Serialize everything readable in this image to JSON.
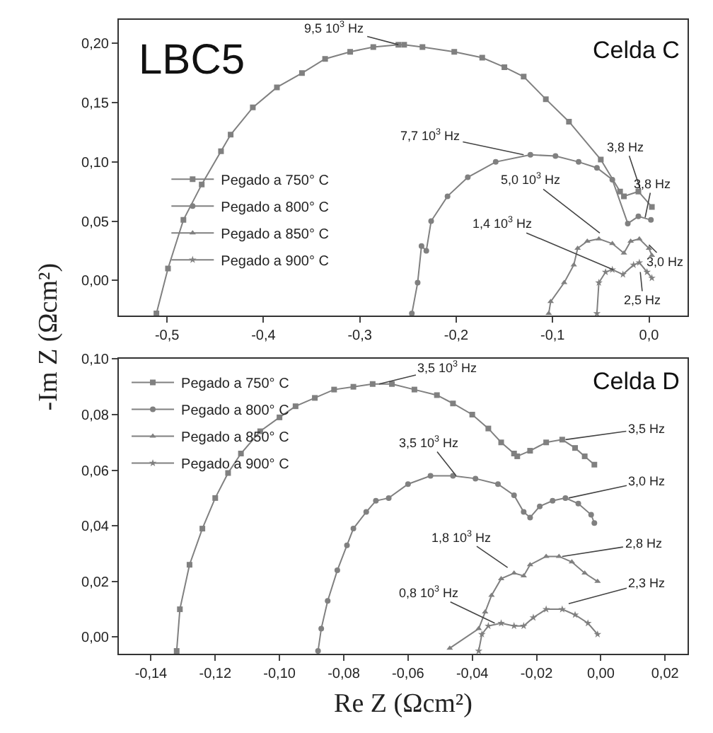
{
  "chart_data": [
    {
      "type": "line",
      "ylabel": "-Im Z (Ωcm²)",
      "annotations": [
        "LBC5",
        "Celda C",
        {
          "text": "9,5 10$^{3}$ Hz",
          "x": -0.26,
          "y": 0.199
        },
        {
          "text": "7,7 10$^{3}$ Hz",
          "x": -0.13,
          "y": 0.106
        },
        {
          "text": "3,8 Hz",
          "x": -0.009,
          "y": 0.077
        },
        {
          "text": "3,8 Hz",
          "x": -0.004,
          "y": 0.053
        },
        {
          "text": "5,0 10$^{3}$ Hz",
          "x": -0.051,
          "y": 0.04
        },
        {
          "text": "3,0 Hz",
          "x": 0.0,
          "y": 0.03
        },
        {
          "text": "1,4 10$^{3}$ Hz",
          "x": -0.037,
          "y": 0.009
        },
        {
          "text": "2,5 Hz",
          "x": -0.009,
          "y": 0.007
        }
      ],
      "xlim": [
        -0.55,
        0.04
      ],
      "ylim": [
        -0.03,
        0.22
      ],
      "xticks": [
        {
          "value": -0.5,
          "label": "-0,5"
        },
        {
          "value": -0.4,
          "label": "-0,4"
        },
        {
          "value": -0.3,
          "label": "-0,3"
        },
        {
          "value": -0.2,
          "label": "-0,2"
        },
        {
          "value": -0.1,
          "label": "-0,1"
        },
        {
          "value": 0.0,
          "label": "0,0"
        }
      ],
      "yticks": [
        {
          "value": 0.0,
          "label": "0,00"
        },
        {
          "value": 0.05,
          "label": "0,05"
        },
        {
          "value": 0.1,
          "label": "0,10"
        },
        {
          "value": 0.15,
          "label": "0,15"
        },
        {
          "value": 0.2,
          "label": "0,20"
        }
      ],
      "legend": "bottom left",
      "series": [
        {
          "name": "Pegado a 750° C",
          "color": "#808080",
          "marker": "square",
          "x": [
            -0.511,
            -0.499,
            -0.483,
            -0.464,
            -0.444,
            -0.434,
            -0.411,
            -0.386,
            -0.36,
            -0.336,
            -0.31,
            -0.286,
            -0.26,
            -0.254,
            -0.235,
            -0.202,
            -0.173,
            -0.15,
            -0.13,
            -0.107,
            -0.083,
            -0.05,
            -0.03,
            -0.026,
            -0.011,
            0.003
          ],
          "values": [
            -0.028,
            0.01,
            0.051,
            0.081,
            0.109,
            0.123,
            0.146,
            0.163,
            0.175,
            0.187,
            0.193,
            0.197,
            0.199,
            0.199,
            0.197,
            0.193,
            0.188,
            0.18,
            0.172,
            0.153,
            0.134,
            0.102,
            0.075,
            0.071,
            0.075,
            0.062
          ]
        },
        {
          "name": "Pegado a 800° C",
          "color": "#808080",
          "marker": "circle",
          "x": [
            -0.246,
            -0.24,
            -0.236,
            -0.231,
            -0.226,
            -0.209,
            -0.188,
            -0.159,
            -0.123,
            -0.097,
            -0.073,
            -0.054,
            -0.038,
            -0.022,
            -0.011,
            0.002
          ],
          "values": [
            -0.028,
            -0.002,
            0.029,
            0.025,
            0.05,
            0.071,
            0.087,
            0.1,
            0.106,
            0.105,
            0.1,
            0.095,
            0.085,
            0.048,
            0.054,
            0.051
          ]
        },
        {
          "name": "Pegado a 850° C",
          "color": "#808080",
          "marker": "triangle",
          "x": [
            -0.104,
            -0.102,
            -0.088,
            -0.078,
            -0.074,
            -0.064,
            -0.052,
            -0.038,
            -0.026,
            -0.019,
            -0.01,
            0.0,
            0.003
          ],
          "values": [
            -0.028,
            -0.018,
            -0.002,
            0.013,
            0.027,
            0.033,
            0.035,
            0.031,
            0.023,
            0.033,
            0.035,
            0.027,
            0.021
          ]
        },
        {
          "name": "Pegado a 900° C",
          "color": "#808080",
          "marker": "star",
          "x": [
            -0.054,
            -0.052,
            -0.045,
            -0.038,
            -0.027,
            -0.016,
            -0.01,
            -0.002,
            0.003
          ],
          "values": [
            -0.028,
            -0.002,
            0.007,
            0.009,
            0.005,
            0.013,
            0.015,
            0.007,
            0.002
          ]
        }
      ]
    },
    {
      "type": "line",
      "xlabel": "Re Z (Ωcm²)",
      "annotations": [
        "Celda D",
        {
          "text": "3,5 10$^{3}$ Hz",
          "x": -0.069,
          "y": 0.091
        },
        {
          "text": "3,5 Hz",
          "x": -0.011,
          "y": 0.071
        },
        {
          "text": "3,5 10$^{3}$ Hz",
          "x": -0.045,
          "y": 0.058
        },
        {
          "text": "3,0 Hz",
          "x": -0.01,
          "y": 0.05
        },
        {
          "text": "1,8 10$^{3}$ Hz",
          "x": -0.029,
          "y": 0.025
        },
        {
          "text": "2,8 Hz",
          "x": -0.012,
          "y": 0.029
        },
        {
          "text": "0,8 10$^{3}$ Hz",
          "x": -0.033,
          "y": 0.005
        },
        {
          "text": "2,3 Hz",
          "x": -0.01,
          "y": 0.012
        }
      ],
      "xlim": [
        -0.15,
        0.027
      ],
      "ylim": [
        -0.006,
        0.1
      ],
      "xticks": [
        {
          "value": -0.14,
          "label": "-0,14"
        },
        {
          "value": -0.12,
          "label": "-0,12"
        },
        {
          "value": -0.1,
          "label": "-0,10"
        },
        {
          "value": -0.08,
          "label": "-0,08"
        },
        {
          "value": -0.06,
          "label": "-0,06"
        },
        {
          "value": -0.04,
          "label": "-0,04"
        },
        {
          "value": -0.02,
          "label": "-0,02"
        },
        {
          "value": 0.0,
          "label": "0,00"
        },
        {
          "value": 0.02,
          "label": "0,02"
        }
      ],
      "yticks": [
        {
          "value": 0.0,
          "label": "0,00"
        },
        {
          "value": 0.02,
          "label": "0,02"
        },
        {
          "value": 0.04,
          "label": "0,04"
        },
        {
          "value": 0.06,
          "label": "0,06"
        },
        {
          "value": 0.08,
          "label": "0,08"
        },
        {
          "value": 0.1,
          "label": "0,10"
        }
      ],
      "legend": "top left",
      "series": [
        {
          "name": "Pegado a 750° C",
          "color": "#808080",
          "marker": "square",
          "x": [
            -0.132,
            -0.131,
            -0.128,
            -0.124,
            -0.12,
            -0.116,
            -0.112,
            -0.106,
            -0.1,
            -0.095,
            -0.089,
            -0.083,
            -0.077,
            -0.071,
            -0.065,
            -0.058,
            -0.051,
            -0.046,
            -0.04,
            -0.035,
            -0.031,
            -0.027,
            -0.026,
            -0.022,
            -0.017,
            -0.012,
            -0.008,
            -0.005,
            -0.002
          ],
          "values": [
            -0.005,
            0.01,
            0.026,
            0.039,
            0.05,
            0.059,
            0.066,
            0.074,
            0.079,
            0.083,
            0.086,
            0.089,
            0.09,
            0.091,
            0.091,
            0.089,
            0.087,
            0.084,
            0.08,
            0.075,
            0.07,
            0.066,
            0.065,
            0.067,
            0.07,
            0.071,
            0.068,
            0.065,
            0.062
          ]
        },
        {
          "name": "Pegado a 800° C",
          "color": "#808080",
          "marker": "circle",
          "x": [
            -0.088,
            -0.087,
            -0.085,
            -0.082,
            -0.079,
            -0.077,
            -0.073,
            -0.07,
            -0.066,
            -0.06,
            -0.053,
            -0.046,
            -0.039,
            -0.032,
            -0.027,
            -0.024,
            -0.022,
            -0.019,
            -0.015,
            -0.011,
            -0.007,
            -0.003,
            -0.002
          ],
          "values": [
            -0.005,
            0.003,
            0.013,
            0.024,
            0.033,
            0.039,
            0.045,
            0.049,
            0.05,
            0.055,
            0.058,
            0.058,
            0.057,
            0.055,
            0.051,
            0.045,
            0.043,
            0.047,
            0.049,
            0.05,
            0.048,
            0.044,
            0.041
          ]
        },
        {
          "name": "Pegado a 850° C",
          "color": "#808080",
          "marker": "triangle",
          "x": [
            -0.047,
            -0.038,
            -0.036,
            -0.034,
            -0.031,
            -0.027,
            -0.024,
            -0.022,
            -0.017,
            -0.013,
            -0.009,
            -0.005,
            -0.001
          ],
          "values": [
            -0.004,
            0.003,
            0.009,
            0.015,
            0.021,
            0.023,
            0.022,
            0.026,
            0.029,
            0.029,
            0.027,
            0.023,
            0.02
          ]
        },
        {
          "name": "Pegado a 900° C",
          "color": "#808080",
          "marker": "star",
          "x": [
            -0.038,
            -0.037,
            -0.035,
            -0.031,
            -0.027,
            -0.024,
            -0.021,
            -0.017,
            -0.012,
            -0.008,
            -0.004,
            -0.001
          ],
          "values": [
            -0.005,
            0.001,
            0.004,
            0.005,
            0.004,
            0.004,
            0.007,
            0.01,
            0.01,
            0.008,
            0.005,
            0.001
          ]
        }
      ]
    }
  ]
}
